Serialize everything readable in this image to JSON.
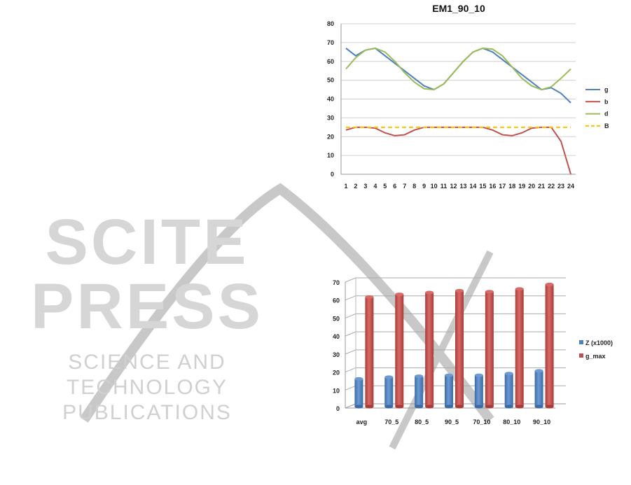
{
  "watermark": {
    "logo_text": "SCITEPRESS",
    "tagline": "SCIENCE AND TECHNOLOGY PUBLICATIONS"
  },
  "chart_data": [
    {
      "type": "line",
      "title": "EM1_90_10",
      "xlabel": "",
      "ylabel": "",
      "x": [
        1,
        2,
        3,
        4,
        5,
        6,
        7,
        8,
        9,
        10,
        11,
        12,
        13,
        14,
        15,
        16,
        17,
        18,
        19,
        20,
        21,
        22,
        23,
        24
      ],
      "ylim": [
        0,
        80
      ],
      "yticks": [
        0,
        10,
        20,
        30,
        40,
        50,
        60,
        70,
        80
      ],
      "grid": true,
      "legend": "right",
      "series": [
        {
          "name": "g",
          "color": "#4f81bd",
          "dashed": false,
          "values": [
            67,
            63,
            66,
            67,
            63,
            59,
            55,
            51,
            47,
            45,
            48,
            54,
            60,
            65,
            67,
            65,
            61,
            57,
            53,
            49,
            45,
            46,
            43,
            38
          ]
        },
        {
          "name": "b",
          "color": "#c0504d",
          "dashed": false,
          "values": [
            23.5,
            25,
            25,
            24.5,
            22,
            20.5,
            21,
            23.5,
            25,
            25,
            25,
            25,
            25,
            25,
            25,
            23.5,
            21,
            20.5,
            22,
            24.5,
            25,
            25,
            17.5,
            0
          ]
        },
        {
          "name": "d",
          "color": "#9bbb59",
          "dashed": false,
          "values": [
            56,
            62,
            66,
            67,
            65,
            60,
            54,
            49,
            45.5,
            45,
            48,
            54,
            60,
            65,
            67,
            66.5,
            63,
            57,
            51,
            47,
            45,
            46.5,
            51,
            56
          ]
        },
        {
          "name": "B",
          "color": "#ffc000",
          "dashed": true,
          "values": [
            25,
            25,
            25,
            25,
            25,
            25,
            25,
            25,
            25,
            25,
            25,
            25,
            25,
            25,
            25,
            25,
            25,
            25,
            25,
            25,
            25,
            25,
            25,
            25
          ]
        }
      ]
    },
    {
      "type": "bar",
      "title": "",
      "xlabel": "",
      "ylabel": "",
      "categories": [
        "avg",
        "70_5",
        "80_5",
        "90_5",
        "70_10",
        "80_10",
        "90_10"
      ],
      "ylim": [
        0,
        70
      ],
      "yticks": [
        0,
        10,
        20,
        30,
        40,
        50,
        60,
        70
      ],
      "grid": true,
      "legend": "right",
      "series": [
        {
          "name": "Z (x1000)",
          "color": "#4f81bd",
          "values": [
            15,
            16,
            16.5,
            17,
            17,
            18,
            19.5
          ]
        },
        {
          "name": "g_max",
          "color": "#c0504d",
          "values": [
            60.5,
            62,
            63,
            64,
            63.5,
            65,
            67.5
          ]
        }
      ]
    }
  ]
}
